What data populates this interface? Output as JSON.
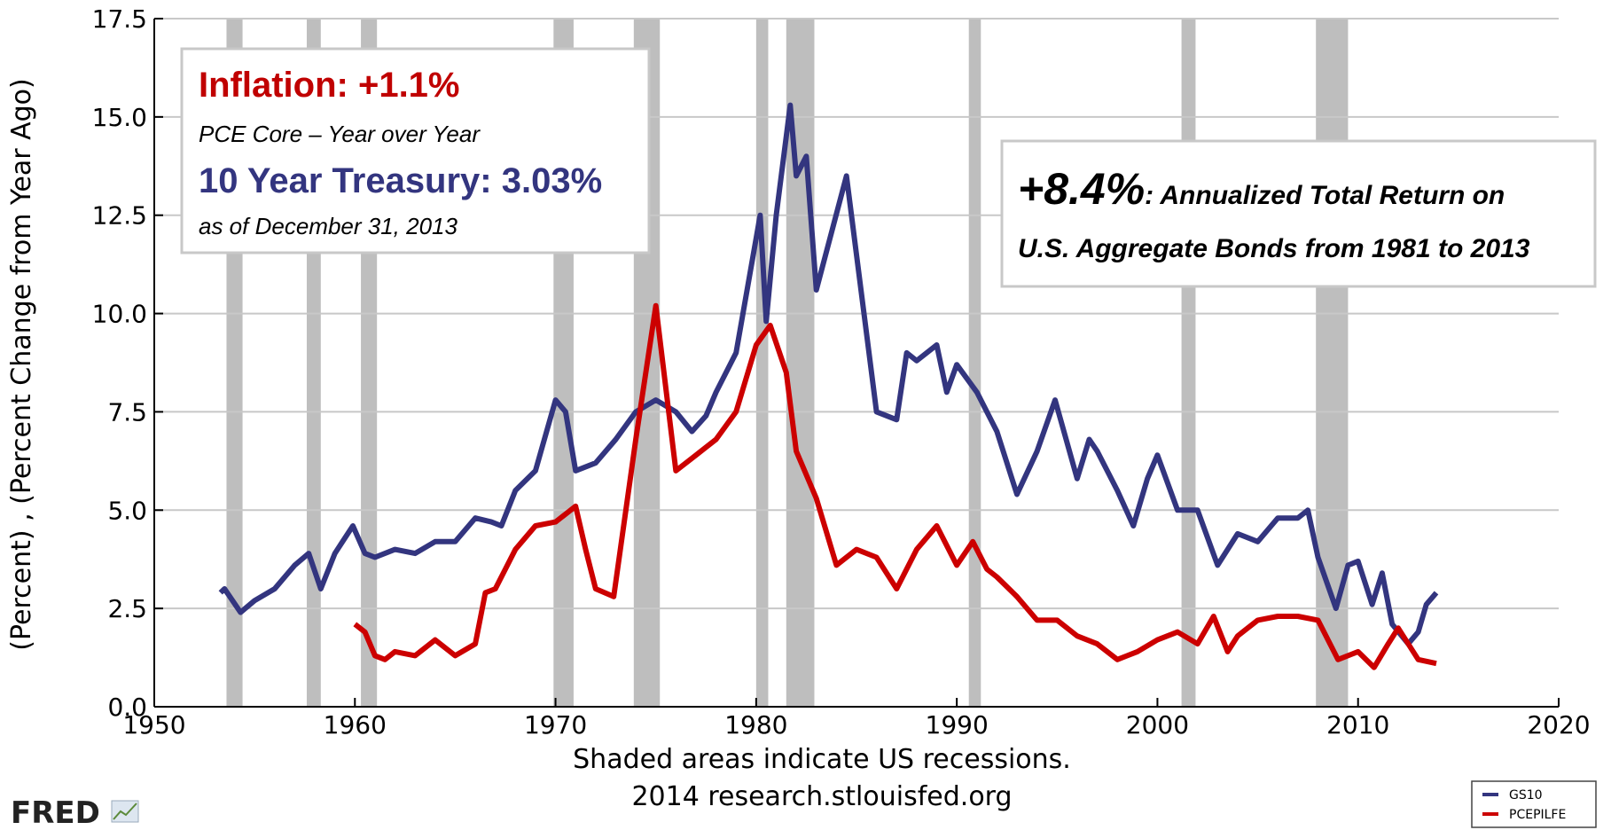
{
  "chart_data": {
    "type": "line",
    "y_label": "(Percent) , (Percent Change from Year Ago)",
    "captions": [
      "Shaded areas indicate US recessions.",
      "2014 research.stlouisfed.org"
    ],
    "logo": "FRED",
    "xlim": [
      1950,
      2020
    ],
    "xticks": [
      1950,
      1960,
      1970,
      1980,
      1990,
      2000,
      2010,
      2020
    ],
    "ylim": [
      0,
      17.5
    ],
    "yticks": [
      {
        "value": 0,
        "label": "0.0"
      },
      2.5,
      {
        "value": 5,
        "label": "5.0"
      },
      7.5,
      {
        "value": 10,
        "label": "10.0"
      },
      12.5,
      {
        "value": 15,
        "label": "15.0"
      },
      17.5
    ],
    "grid": true,
    "legend_position": "lower right",
    "recessions": [
      [
        1953.6,
        1954.4
      ],
      [
        1957.6,
        1958.3
      ],
      [
        1960.3,
        1961.1
      ],
      [
        1969.9,
        1970.9
      ],
      [
        1973.9,
        1975.2
      ],
      [
        1980.0,
        1980.6
      ],
      [
        1981.5,
        1982.9
      ],
      [
        1990.6,
        1991.2
      ],
      [
        2001.2,
        2001.9
      ],
      [
        2007.9,
        2009.5
      ]
    ],
    "recession_color": "#bebebe",
    "annotations": {
      "inflation": "Inflation: +1.1%",
      "inflation_note": "PCE Core – Year over Year",
      "treasury": "10 Year Treasury: 3.03%",
      "date": "as of December 31, 2013",
      "return_value": "+8.4%",
      "return_line1": ": Annualized Total Return on",
      "return_line2": "U.S. Aggregate Bonds from 1981 to 2013"
    },
    "series": [
      {
        "name": "GS10",
        "color": "#33357f",
        "x": [
          1953.3,
          1953.5,
          1954.3,
          1955,
          1956,
          1957,
          1957.7,
          1958.3,
          1959,
          1959.9,
          1960.5,
          1961,
          1962,
          1963,
          1964,
          1965,
          1966,
          1966.8,
          1967.3,
          1968,
          1969,
          1970,
          1970.5,
          1971,
          1972,
          1973,
          1974,
          1975,
          1976,
          1976.8,
          1977.5,
          1978,
          1979,
          1980.2,
          1980.5,
          1981,
          1981.7,
          1982,
          1982.5,
          1983,
          1984.5,
          1985,
          1986,
          1987,
          1987.5,
          1988,
          1989,
          1989.5,
          1990,
          1991,
          1992,
          1993,
          1994,
          1994.9,
          1996,
          1996.6,
          1997,
          1998,
          1998.8,
          1999.5,
          2000,
          2001,
          2002,
          2003,
          2004,
          2005,
          2006,
          2007,
          2007.5,
          2008,
          2008.9,
          2009.5,
          2010,
          2010.7,
          2011.2,
          2011.7,
          2012.5,
          2013,
          2013.4,
          2013.9
        ],
        "values": [
          2.9,
          3.0,
          2.4,
          2.7,
          3.0,
          3.6,
          3.9,
          3.0,
          3.9,
          4.6,
          3.9,
          3.8,
          4.0,
          3.9,
          4.2,
          4.2,
          4.8,
          4.7,
          4.6,
          5.5,
          6.0,
          7.8,
          7.5,
          6.0,
          6.2,
          6.8,
          7.5,
          7.8,
          7.5,
          7.0,
          7.4,
          8.0,
          9.0,
          12.5,
          9.8,
          12.5,
          15.3,
          13.5,
          14.0,
          10.6,
          13.5,
          11.5,
          7.5,
          7.3,
          9.0,
          8.8,
          9.2,
          8.0,
          8.7,
          8.0,
          7.0,
          5.4,
          6.5,
          7.8,
          5.8,
          6.8,
          6.5,
          5.5,
          4.6,
          5.8,
          6.4,
          5.0,
          5.0,
          3.6,
          4.4,
          4.2,
          4.8,
          4.8,
          5.0,
          3.8,
          2.5,
          3.6,
          3.7,
          2.6,
          3.4,
          2.1,
          1.6,
          1.9,
          2.6,
          2.9
        ]
      },
      {
        "name": "PCEPILFE",
        "color": "#cc0000",
        "x": [
          1960,
          1960.5,
          1961,
          1961.5,
          1962,
          1963,
          1964,
          1965,
          1966,
          1966.5,
          1967,
          1968,
          1969,
          1970,
          1971,
          1971.5,
          1972,
          1972.9,
          1974,
          1975,
          1976,
          1977,
          1978,
          1979,
          1980,
          1980.7,
          1981.5,
          1982,
          1983,
          1984,
          1985,
          1986,
          1987,
          1988,
          1989,
          1990,
          1990.8,
          1991.5,
          1992,
          1993,
          1994,
          1995,
          1996,
          1997,
          1998,
          1999,
          2000,
          2001,
          2002,
          2002.8,
          2003.5,
          2004,
          2005,
          2006,
          2007,
          2008,
          2009,
          2010,
          2010.8,
          2011.5,
          2012,
          2013,
          2013.9
        ],
        "values": [
          2.1,
          1.9,
          1.3,
          1.2,
          1.4,
          1.3,
          1.7,
          1.3,
          1.6,
          2.9,
          3.0,
          4.0,
          4.6,
          4.7,
          5.1,
          4.0,
          3.0,
          2.8,
          6.8,
          10.2,
          6.0,
          6.4,
          6.8,
          7.5,
          9.2,
          9.7,
          8.5,
          6.5,
          5.3,
          3.6,
          4.0,
          3.8,
          3.0,
          4.0,
          4.6,
          3.6,
          4.2,
          3.5,
          3.3,
          2.8,
          2.2,
          2.2,
          1.8,
          1.6,
          1.2,
          1.4,
          1.7,
          1.9,
          1.6,
          2.3,
          1.4,
          1.8,
          2.2,
          2.3,
          2.3,
          2.2,
          1.2,
          1.4,
          1.0,
          1.6,
          2.0,
          1.2,
          1.1
        ]
      }
    ]
  }
}
